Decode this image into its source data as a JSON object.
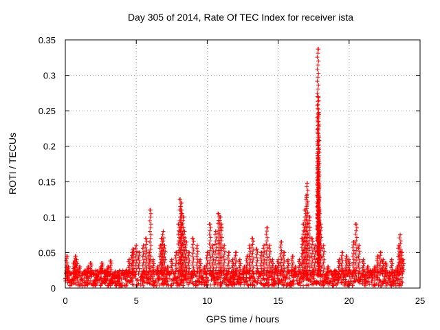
{
  "chart_data": {
    "type": "scatter",
    "title": "Day 305 of 2014, Rate Of TEC Index for receiver ista",
    "xlabel": "GPS time / hours",
    "ylabel": "ROTI / TECUs",
    "xlim": [
      0,
      25
    ],
    "ylim": [
      0,
      0.35
    ],
    "xticks": [
      0,
      5,
      10,
      15,
      20,
      25
    ],
    "yticks": [
      0,
      0.05,
      0.1,
      0.15,
      0.2,
      0.25,
      0.3,
      0.35
    ],
    "xtick_labels": [
      "0",
      "5",
      "10",
      "15",
      "20",
      "25"
    ],
    "ytick_labels": [
      "0",
      "0.05",
      "0.1",
      "0.15",
      "0.2",
      "0.25",
      "0.3",
      "0.35"
    ],
    "grid": true,
    "marker": "+",
    "color": "#ff0000",
    "series": [
      {
        "name": "ROTI",
        "points": [
          [
            0.1,
            0.045
          ],
          [
            0.2,
            0.03
          ],
          [
            0.4,
            0.02
          ],
          [
            0.6,
            0.035
          ],
          [
            0.7,
            0.045
          ],
          [
            0.8,
            0.04
          ],
          [
            1.0,
            0.03
          ],
          [
            1.2,
            0.02
          ],
          [
            1.4,
            0.025
          ],
          [
            1.6,
            0.03
          ],
          [
            1.8,
            0.035
          ],
          [
            2.0,
            0.02
          ],
          [
            2.2,
            0.015
          ],
          [
            2.5,
            0.03
          ],
          [
            2.6,
            0.035
          ],
          [
            2.8,
            0.025
          ],
          [
            3.0,
            0.03
          ],
          [
            3.2,
            0.038
          ],
          [
            3.5,
            0.02
          ],
          [
            3.8,
            0.015
          ],
          [
            4.0,
            0.02
          ],
          [
            4.3,
            0.025
          ],
          [
            4.5,
            0.04
          ],
          [
            4.7,
            0.05
          ],
          [
            4.8,
            0.055
          ],
          [
            5.0,
            0.06
          ],
          [
            5.2,
            0.05
          ],
          [
            5.5,
            0.06
          ],
          [
            5.7,
            0.07
          ],
          [
            5.9,
            0.05
          ],
          [
            6.0,
            0.11
          ],
          [
            6.2,
            0.04
          ],
          [
            6.5,
            0.03
          ],
          [
            6.7,
            0.06
          ],
          [
            6.8,
            0.07
          ],
          [
            6.9,
            0.08
          ],
          [
            7.0,
            0.06
          ],
          [
            7.2,
            0.03
          ],
          [
            7.5,
            0.04
          ],
          [
            7.8,
            0.05
          ],
          [
            8.0,
            0.09
          ],
          [
            8.1,
            0.125
          ],
          [
            8.15,
            0.12
          ],
          [
            8.2,
            0.11
          ],
          [
            8.3,
            0.1
          ],
          [
            8.4,
            0.08
          ],
          [
            8.5,
            0.065
          ],
          [
            8.7,
            0.05
          ],
          [
            9.0,
            0.07
          ],
          [
            9.3,
            0.06
          ],
          [
            9.5,
            0.04
          ],
          [
            9.8,
            0.03
          ],
          [
            10.0,
            0.05
          ],
          [
            10.2,
            0.09
          ],
          [
            10.4,
            0.06
          ],
          [
            10.6,
            0.08
          ],
          [
            10.8,
            0.105
          ],
          [
            10.9,
            0.1
          ],
          [
            11.0,
            0.09
          ],
          [
            11.2,
            0.06
          ],
          [
            11.5,
            0.05
          ],
          [
            11.8,
            0.04
          ],
          [
            12.0,
            0.05
          ],
          [
            12.3,
            0.04
          ],
          [
            12.6,
            0.03
          ],
          [
            12.8,
            0.045
          ],
          [
            13.0,
            0.06
          ],
          [
            13.2,
            0.07
          ],
          [
            13.5,
            0.055
          ],
          [
            13.8,
            0.05
          ],
          [
            14.0,
            0.06
          ],
          [
            14.2,
            0.085
          ],
          [
            14.4,
            0.06
          ],
          [
            14.6,
            0.04
          ],
          [
            14.8,
            0.03
          ],
          [
            15.0,
            0.04
          ],
          [
            15.2,
            0.065
          ],
          [
            15.4,
            0.05
          ],
          [
            15.7,
            0.04
          ],
          [
            16.0,
            0.045
          ],
          [
            16.2,
            0.03
          ],
          [
            16.5,
            0.04
          ],
          [
            16.7,
            0.07
          ],
          [
            16.8,
            0.09
          ],
          [
            16.9,
            0.11
          ],
          [
            17.0,
            0.13
          ],
          [
            17.05,
            0.148
          ],
          [
            17.2,
            0.1
          ],
          [
            17.4,
            0.07
          ],
          [
            17.6,
            0.06
          ],
          [
            17.8,
            0.337
          ],
          [
            17.82,
            0.27
          ],
          [
            17.84,
            0.245
          ],
          [
            17.86,
            0.208
          ],
          [
            17.8,
            0.183
          ],
          [
            17.82,
            0.163
          ],
          [
            17.84,
            0.145
          ],
          [
            17.85,
            0.128
          ],
          [
            17.9,
            0.11
          ],
          [
            18.0,
            0.09
          ],
          [
            18.2,
            0.06
          ],
          [
            18.5,
            0.03
          ],
          [
            18.8,
            0.02
          ],
          [
            19.0,
            0.025
          ],
          [
            19.3,
            0.04
          ],
          [
            19.5,
            0.05
          ],
          [
            19.8,
            0.045
          ],
          [
            20.0,
            0.04
          ],
          [
            20.3,
            0.065
          ],
          [
            20.5,
            0.09
          ],
          [
            20.7,
            0.06
          ],
          [
            21.0,
            0.04
          ],
          [
            21.3,
            0.03
          ],
          [
            21.5,
            0.025
          ],
          [
            21.8,
            0.03
          ],
          [
            22.0,
            0.045
          ],
          [
            22.2,
            0.05
          ],
          [
            22.4,
            0.04
          ],
          [
            22.6,
            0.035
          ],
          [
            23.0,
            0.04
          ],
          [
            23.2,
            0.02
          ],
          [
            23.4,
            0.03
          ],
          [
            23.5,
            0.06
          ],
          [
            23.6,
            0.075
          ],
          [
            23.7,
            0.05
          ],
          [
            23.8,
            0.04
          ]
        ],
        "baseline_band": {
          "x_range": [
            0,
            23.8
          ],
          "y_range": [
            0.003,
            0.025
          ],
          "note": "dense cluster of low ROTI values along the full time span"
        }
      }
    ]
  }
}
